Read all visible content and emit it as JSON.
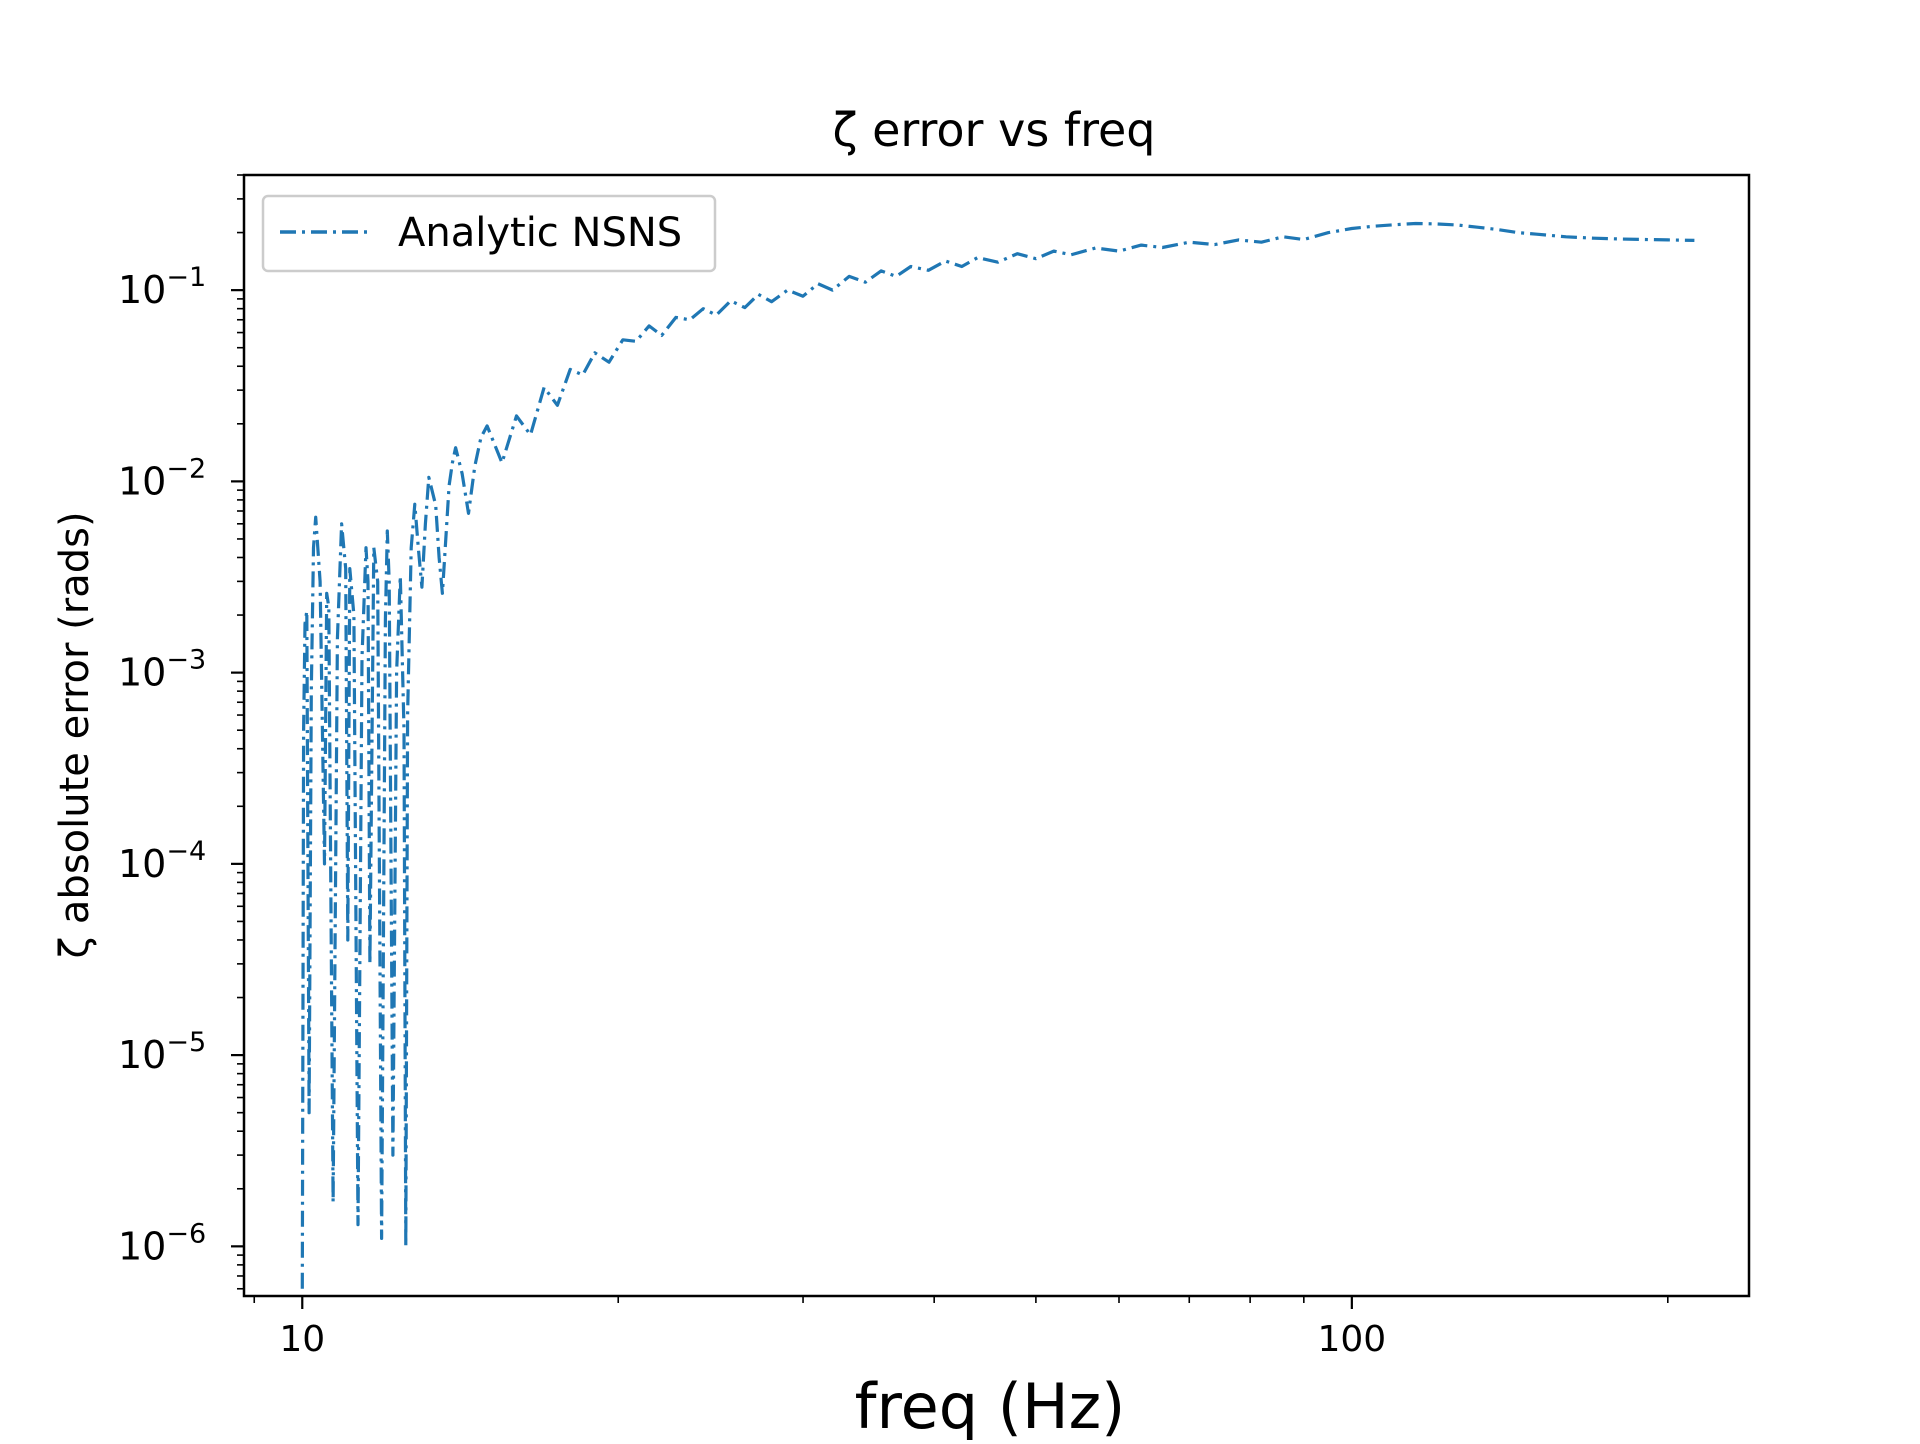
{
  "chart_data": {
    "type": "line",
    "title": "ζ error vs freq",
    "xlabel": "freq (Hz)",
    "ylabel": "ζ absolute error (rads)",
    "xscale": "log",
    "yscale": "log",
    "xlim": [
      8.8,
      239
    ],
    "ylim": [
      5.5e-07,
      0.4
    ],
    "xticks": [
      {
        "value": 10,
        "label": "10"
      },
      {
        "value": 100,
        "label": "100"
      }
    ],
    "yticks": [
      {
        "value": 0.1,
        "base": "10",
        "exp": "−1"
      },
      {
        "value": 0.01,
        "base": "10",
        "exp": "−2"
      },
      {
        "value": 0.001,
        "base": "10",
        "exp": "−3"
      },
      {
        "value": 0.0001,
        "base": "10",
        "exp": "−4"
      },
      {
        "value": 1e-05,
        "base": "10",
        "exp": "−5"
      },
      {
        "value": 1e-06,
        "base": "10",
        "exp": "−6"
      }
    ],
    "grid": false,
    "legend_position": "top-left",
    "series": [
      {
        "name": "Analytic NSNS",
        "color": "#1f77b4",
        "line_style": "dash-dot",
        "x": [
          10.0,
          10.03,
          10.06,
          10.1,
          10.15,
          10.2,
          10.25,
          10.3,
          10.4,
          10.5,
          10.55,
          10.6,
          10.7,
          10.8,
          10.9,
          11.0,
          11.05,
          11.1,
          11.2,
          11.3,
          11.4,
          11.5,
          11.55,
          11.6,
          11.7,
          11.8,
          11.9,
          12.0,
          12.05,
          12.1,
          12.2,
          12.3,
          12.4,
          12.5,
          12.55,
          12.6,
          12.7,
          12.8,
          12.9,
          13.0,
          13.1,
          13.2,
          13.4,
          13.5,
          13.6,
          13.7,
          13.8,
          13.9,
          14.0,
          14.2,
          14.4,
          14.6,
          14.8,
          15.0,
          15.5,
          16.0,
          16.5,
          17.0,
          17.5,
          18.0,
          18.5,
          19.0,
          19.6,
          20.2,
          20.8,
          21.4,
          22.0,
          22.7,
          23.4,
          24.1,
          24.8,
          25.6,
          26.4,
          27.2,
          28.0,
          29.0,
          30.0,
          31.0,
          32.0,
          33.2,
          34.4,
          35.6,
          36.8,
          38.0,
          39.5,
          41.0,
          42.5,
          44.0,
          46.0,
          48.0,
          50.0,
          52.0,
          54.0,
          57.0,
          60.0,
          63.0,
          66.0,
          70.0,
          74.0,
          78.0,
          82.0,
          86.0,
          90.0,
          95.0,
          100.0,
          105.0,
          110.0,
          115.0,
          120.0,
          126.0,
          132.0,
          138.0,
          144.0,
          150.0,
          160.0,
          170.0,
          180.0,
          190.0,
          200.0,
          212.0
        ],
        "y": [
          6e-07,
          0.0005,
          0.0018,
          0.0021,
          5e-06,
          0.0008,
          0.0045,
          0.0065,
          0.003,
          0.0001,
          0.0026,
          0.0022,
          1.7e-06,
          0.0015,
          0.006,
          0.0035,
          4e-05,
          0.0035,
          0.002,
          1.3e-06,
          0.0012,
          0.0045,
          0.003,
          3e-05,
          0.0045,
          0.003,
          1.1e-06,
          0.0019,
          0.0055,
          0.003,
          3e-06,
          0.001,
          0.0032,
          0.0005,
          1e-06,
          0.0006,
          0.0045,
          0.0076,
          0.0045,
          0.0028,
          0.006,
          0.0105,
          0.0075,
          0.004,
          0.0026,
          0.005,
          0.0095,
          0.0125,
          0.015,
          0.011,
          0.0068,
          0.012,
          0.017,
          0.0195,
          0.0125,
          0.022,
          0.0175,
          0.031,
          0.025,
          0.0385,
          0.036,
          0.047,
          0.042,
          0.055,
          0.054,
          0.065,
          0.058,
          0.072,
          0.07,
          0.08,
          0.074,
          0.088,
          0.081,
          0.095,
          0.087,
          0.1,
          0.093,
          0.108,
          0.1,
          0.118,
          0.11,
          0.126,
          0.118,
          0.133,
          0.127,
          0.142,
          0.133,
          0.148,
          0.14,
          0.155,
          0.146,
          0.16,
          0.153,
          0.166,
          0.16,
          0.172,
          0.167,
          0.178,
          0.173,
          0.183,
          0.178,
          0.19,
          0.184,
          0.2,
          0.21,
          0.216,
          0.22,
          0.223,
          0.222,
          0.219,
          0.213,
          0.207,
          0.2,
          0.196,
          0.19,
          0.187,
          0.185,
          0.184,
          0.183,
          0.182
        ]
      }
    ]
  }
}
